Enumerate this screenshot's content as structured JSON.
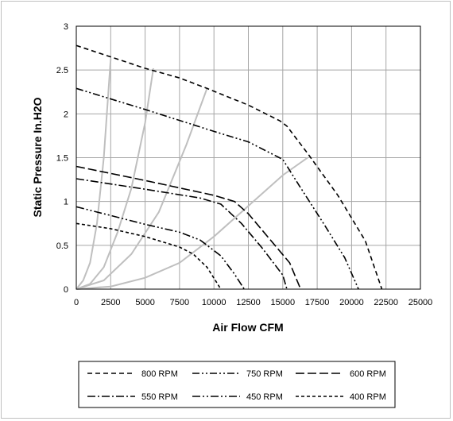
{
  "chart_data": {
    "type": "line",
    "xlabel": "Air Flow CFM",
    "ylabel": "Static Pressure In.H2O",
    "xlim": [
      0,
      25000
    ],
    "ylim": [
      0,
      3
    ],
    "x_ticks": [
      "0",
      "2500",
      "5000",
      "7500",
      "10000",
      "12500",
      "15000",
      "17500",
      "20000",
      "22500",
      "25000"
    ],
    "y_ticks": [
      "0",
      "0.5",
      "1",
      "1.5",
      "2",
      "2.5",
      "3"
    ],
    "grid": true,
    "legend_position": "bottom",
    "series": [
      {
        "name": "800 RPM",
        "dash": "6,4",
        "points": [
          [
            0,
            2.78
          ],
          [
            2500,
            2.65
          ],
          [
            5000,
            2.52
          ],
          [
            7500,
            2.41
          ],
          [
            9500,
            2.29
          ],
          [
            12500,
            2.1
          ],
          [
            14800,
            1.92
          ],
          [
            15300,
            1.86
          ],
          [
            16800,
            1.55
          ],
          [
            19000,
            1.07
          ],
          [
            21000,
            0.55
          ],
          [
            22200,
            0.0
          ]
        ]
      },
      {
        "name": "750 RPM",
        "dash": "9,3,2,3,2,3",
        "points": [
          [
            0,
            2.29
          ],
          [
            5000,
            2.05
          ],
          [
            10000,
            1.8
          ],
          [
            12500,
            1.68
          ],
          [
            15000,
            1.48
          ],
          [
            16200,
            1.18
          ],
          [
            18000,
            0.74
          ],
          [
            19500,
            0.36
          ],
          [
            20500,
            0.0
          ]
        ]
      },
      {
        "name": "600 RPM",
        "dash": "11,4",
        "points": [
          [
            0,
            1.4
          ],
          [
            5000,
            1.24
          ],
          [
            10000,
            1.07
          ],
          [
            11500,
            1.0
          ],
          [
            12500,
            0.86
          ],
          [
            14000,
            0.58
          ],
          [
            15500,
            0.3
          ],
          [
            16300,
            0.0
          ]
        ]
      },
      {
        "name": "550 RPM",
        "dash": "10,3,2,3",
        "points": [
          [
            0,
            1.26
          ],
          [
            5000,
            1.14
          ],
          [
            9000,
            1.04
          ],
          [
            10500,
            0.97
          ],
          [
            12000,
            0.75
          ],
          [
            13500,
            0.47
          ],
          [
            15000,
            0.16
          ],
          [
            15300,
            0.0
          ]
        ]
      },
      {
        "name": "450 RPM",
        "dash": "10,3,2,3,2,3",
        "points": [
          [
            0,
            0.94
          ],
          [
            2500,
            0.84
          ],
          [
            5000,
            0.74
          ],
          [
            7500,
            0.65
          ],
          [
            9000,
            0.56
          ],
          [
            10500,
            0.38
          ],
          [
            11500,
            0.17
          ],
          [
            12200,
            0.0
          ]
        ]
      },
      {
        "name": "400 RPM",
        "dash": "4,3",
        "points": [
          [
            0,
            0.75
          ],
          [
            2500,
            0.69
          ],
          [
            5000,
            0.6
          ],
          [
            7500,
            0.48
          ],
          [
            8500,
            0.4
          ],
          [
            9500,
            0.25
          ],
          [
            10500,
            0.0
          ]
        ]
      }
    ],
    "system_curves": [
      {
        "points": [
          [
            0,
            0.0
          ],
          [
            500,
            0.1
          ],
          [
            1000,
            0.3
          ],
          [
            1500,
            0.75
          ],
          [
            2000,
            1.5
          ],
          [
            2500,
            2.63
          ]
        ]
      },
      {
        "points": [
          [
            0,
            0.0
          ],
          [
            1000,
            0.06
          ],
          [
            2000,
            0.25
          ],
          [
            3000,
            0.65
          ],
          [
            4000,
            1.15
          ],
          [
            5000,
            1.9
          ],
          [
            5600,
            2.52
          ]
        ]
      },
      {
        "points": [
          [
            0,
            0.0
          ],
          [
            2000,
            0.1
          ],
          [
            4000,
            0.4
          ],
          [
            6000,
            0.88
          ],
          [
            8000,
            1.65
          ],
          [
            9500,
            2.29
          ]
        ]
      },
      {
        "points": [
          [
            0,
            0.0
          ],
          [
            2500,
            0.03
          ],
          [
            5000,
            0.13
          ],
          [
            7500,
            0.3
          ],
          [
            10000,
            0.6
          ],
          [
            12500,
            0.95
          ],
          [
            15000,
            1.3
          ],
          [
            16800,
            1.5
          ]
        ]
      }
    ]
  }
}
